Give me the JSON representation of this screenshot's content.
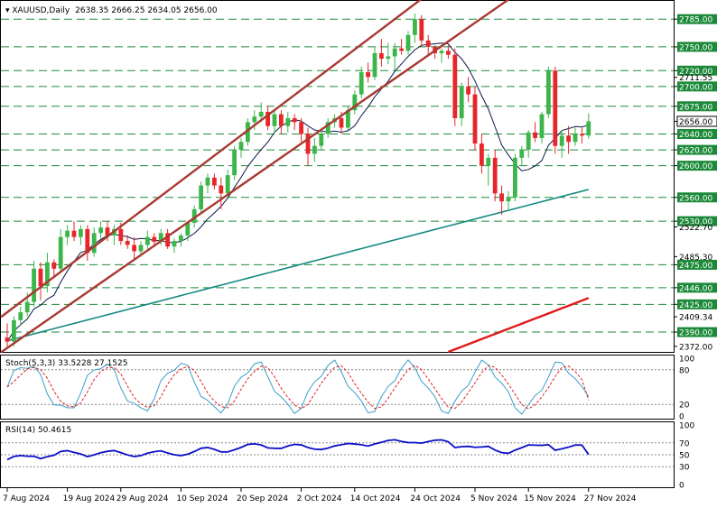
{
  "header": {
    "symbol": "XAUUSD,Daily",
    "ohlc": "2638.35 2666.25 2634.05 2656.00"
  },
  "stoch_panel": {
    "label": "Stoch(5,3,3) 33.5228 27.1525",
    "ticks": [
      "100",
      "80",
      "20",
      "0"
    ]
  },
  "rsi_panel": {
    "label": "RSI(14) 50.4615",
    "ticks": [
      "100",
      "70",
      "50",
      "30",
      "0"
    ]
  },
  "colors": {
    "bull": "#3cb54a",
    "bear": "#e8252a",
    "channel": "#a83a32",
    "ma_fast": "#0a1a4a",
    "ma_mid": "#168a80",
    "ma_slow": "#e11a1a",
    "dash": "#1d8a3a",
    "rsi": "#0b10c8",
    "stoch_main": "#3a9ec8",
    "stoch_signal": "#e02020"
  },
  "chart_data": {
    "type": "candlestick",
    "symbol": "XAUUSD",
    "timeframe": "Daily",
    "x_labels": [
      "7 Aug 2024",
      "19 Aug 2024",
      "29 Aug 2024",
      "10 Sep 2024",
      "20 Sep 2024",
      "2 Oct 2024",
      "14 Oct 2024",
      "24 Oct 2024",
      "5 Nov 2024",
      "15 Nov 2024",
      "27 Nov 2024"
    ],
    "ylim": [
      2365,
      2808
    ],
    "level_lines": [
      2785.0,
      2750.0,
      2720.0,
      2700.0,
      2675.0,
      2640.0,
      2620.0,
      2600.0,
      2560.0,
      2530.0,
      2475.0,
      2446.0,
      2425.0,
      2390.0
    ],
    "price_labels": [
      "2785.00",
      "2750.00",
      "2720.00",
      "2711.55",
      "2700.00",
      "2675.00",
      "2656.00",
      "2640.00",
      "2620.00",
      "2600.00",
      "2560.00",
      "2530.00",
      "2522.70",
      "2485.30",
      "2475.00",
      "2446.00",
      "2425.00",
      "2409.34",
      "2390.00",
      "2372.00"
    ],
    "current_price": "2656.00",
    "candles": [
      [
        2383,
        2401,
        2370,
        2378
      ],
      [
        2378,
        2410,
        2372,
        2405
      ],
      [
        2405,
        2422,
        2398,
        2415
      ],
      [
        2415,
        2440,
        2410,
        2428
      ],
      [
        2428,
        2480,
        2422,
        2470
      ],
      [
        2470,
        2478,
        2430,
        2448
      ],
      [
        2448,
        2490,
        2440,
        2478
      ],
      [
        2478,
        2482,
        2460,
        2470
      ],
      [
        2470,
        2520,
        2465,
        2510
      ],
      [
        2510,
        2525,
        2500,
        2518
      ],
      [
        2518,
        2530,
        2505,
        2510
      ],
      [
        2510,
        2525,
        2500,
        2520
      ],
      [
        2520,
        2525,
        2480,
        2490
      ],
      [
        2490,
        2522,
        2485,
        2515
      ],
      [
        2515,
        2530,
        2508,
        2522
      ],
      [
        2522,
        2530,
        2505,
        2512
      ],
      [
        2512,
        2525,
        2500,
        2520
      ],
      [
        2520,
        2528,
        2500,
        2505
      ],
      [
        2505,
        2512,
        2495,
        2500
      ],
      [
        2500,
        2510,
        2480,
        2492
      ],
      [
        2492,
        2505,
        2485,
        2500
      ],
      [
        2500,
        2518,
        2495,
        2510
      ],
      [
        2510,
        2515,
        2500,
        2504
      ],
      [
        2504,
        2520,
        2500,
        2515
      ],
      [
        2515,
        2520,
        2495,
        2498
      ],
      [
        2498,
        2508,
        2490,
        2505
      ],
      [
        2505,
        2515,
        2498,
        2512
      ],
      [
        2512,
        2530,
        2505,
        2528
      ],
      [
        2528,
        2550,
        2522,
        2545
      ],
      [
        2545,
        2580,
        2540,
        2575
      ],
      [
        2575,
        2590,
        2565,
        2585
      ],
      [
        2585,
        2590,
        2570,
        2575
      ],
      [
        2575,
        2585,
        2545,
        2565
      ],
      [
        2565,
        2595,
        2560,
        2588
      ],
      [
        2588,
        2625,
        2582,
        2620
      ],
      [
        2620,
        2635,
        2610,
        2630
      ],
      [
        2630,
        2660,
        2625,
        2655
      ],
      [
        2655,
        2670,
        2645,
        2662
      ],
      [
        2662,
        2680,
        2655,
        2668
      ],
      [
        2668,
        2675,
        2645,
        2650
      ],
      [
        2650,
        2672,
        2640,
        2665
      ],
      [
        2665,
        2670,
        2640,
        2650
      ],
      [
        2650,
        2668,
        2642,
        2660
      ],
      [
        2660,
        2665,
        2645,
        2655
      ],
      [
        2655,
        2660,
        2630,
        2640
      ],
      [
        2640,
        2648,
        2600,
        2615
      ],
      [
        2615,
        2635,
        2605,
        2625
      ],
      [
        2625,
        2645,
        2620,
        2640
      ],
      [
        2640,
        2660,
        2635,
        2655
      ],
      [
        2655,
        2665,
        2648,
        2660
      ],
      [
        2660,
        2668,
        2640,
        2648
      ],
      [
        2648,
        2675,
        2645,
        2670
      ],
      [
        2670,
        2695,
        2665,
        2690
      ],
      [
        2690,
        2725,
        2685,
        2718
      ],
      [
        2718,
        2730,
        2705,
        2712
      ],
      [
        2712,
        2750,
        2708,
        2742
      ],
      [
        2742,
        2760,
        2725,
        2735
      ],
      [
        2735,
        2755,
        2728,
        2738
      ],
      [
        2738,
        2755,
        2720,
        2748
      ],
      [
        2748,
        2760,
        2740,
        2745
      ],
      [
        2745,
        2770,
        2740,
        2765
      ],
      [
        2765,
        2792,
        2755,
        2785
      ],
      [
        2785,
        2790,
        2750,
        2758
      ],
      [
        2758,
        2765,
        2740,
        2750
      ],
      [
        2750,
        2752,
        2735,
        2742
      ],
      [
        2742,
        2748,
        2730,
        2745
      ],
      [
        2745,
        2752,
        2735,
        2740
      ],
      [
        2740,
        2748,
        2650,
        2660
      ],
      [
        2660,
        2705,
        2650,
        2700
      ],
      [
        2700,
        2712,
        2680,
        2690
      ],
      [
        2690,
        2700,
        2620,
        2628
      ],
      [
        2628,
        2640,
        2590,
        2600
      ],
      [
        2600,
        2615,
        2575,
        2610
      ],
      [
        2610,
        2620,
        2555,
        2565
      ],
      [
        2565,
        2575,
        2538,
        2555
      ],
      [
        2555,
        2568,
        2545,
        2560
      ],
      [
        2560,
        2615,
        2555,
        2610
      ],
      [
        2610,
        2625,
        2600,
        2620
      ],
      [
        2620,
        2645,
        2610,
        2642
      ],
      [
        2642,
        2655,
        2630,
        2635
      ],
      [
        2635,
        2668,
        2628,
        2665
      ],
      [
        2665,
        2725,
        2660,
        2720
      ],
      [
        2720,
        2725,
        2615,
        2625
      ],
      [
        2625,
        2645,
        2610,
        2638
      ],
      [
        2638,
        2650,
        2615,
        2630
      ],
      [
        2630,
        2648,
        2625,
        2640
      ],
      [
        2640,
        2648,
        2628,
        2638
      ],
      [
        2638,
        2666,
        2634,
        2656
      ]
    ],
    "stochastic": {
      "name": "Stoch(5,3,3)",
      "main": 33.5228,
      "signal": 27.1525,
      "levels": [
        80,
        20
      ],
      "ylim": [
        0,
        100
      ]
    },
    "rsi": {
      "name": "RSI(14)",
      "value": 50.4615,
      "levels": [
        70,
        50,
        30
      ],
      "ylim": [
        0,
        100
      ]
    }
  }
}
